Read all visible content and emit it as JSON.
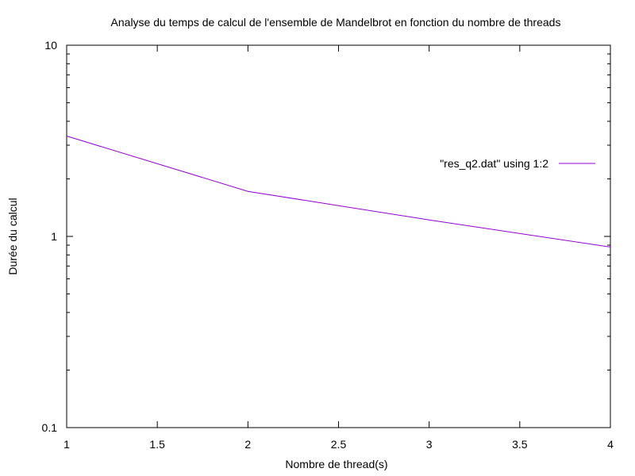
{
  "chart_data": {
    "type": "line",
    "title": "Analyse du temps de calcul de l'ensemble de Mandelbrot en fonction du nombre de threads",
    "xlabel": "Nombre de thread(s)",
    "ylabel": "Durée du calcul",
    "xlim": [
      1,
      4
    ],
    "ylim": [
      0.1,
      10
    ],
    "yscale": "log",
    "grid": false,
    "legend_position": "top-right",
    "x_ticks": [
      "1",
      "1.5",
      "2",
      "2.5",
      "3",
      "3.5",
      "4"
    ],
    "y_ticks": [
      "0.1",
      "1",
      "10"
    ],
    "series": [
      {
        "name": "\"res_q2.dat\" using 1:2",
        "color": "#9400d3",
        "x": [
          1,
          2,
          3,
          4
        ],
        "y": [
          3.35,
          1.72,
          1.22,
          0.88
        ]
      }
    ]
  }
}
